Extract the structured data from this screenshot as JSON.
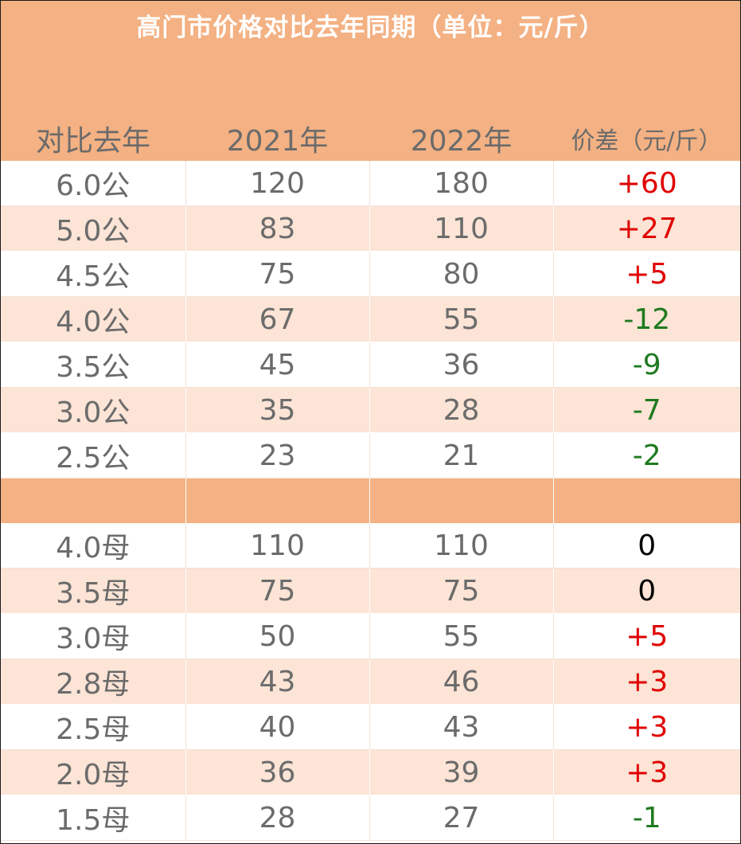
{
  "title": "高门市价格对比去年同期（单位：元/斤）",
  "header": {
    "col1": "对比去年",
    "col2": "2021年",
    "col3": "2022年",
    "col4": "价差（元/斤）"
  },
  "male_rows": [
    {
      "spec": "6.0公",
      "y2021": "120",
      "y2022": "180",
      "diff": "+60",
      "sign": "pos"
    },
    {
      "spec": "5.0公",
      "y2021": "83",
      "y2022": "110",
      "diff": "+27",
      "sign": "pos"
    },
    {
      "spec": "4.5公",
      "y2021": "75",
      "y2022": "80",
      "diff": "+5",
      "sign": "pos"
    },
    {
      "spec": "4.0公",
      "y2021": "67",
      "y2022": "55",
      "diff": "-12",
      "sign": "neg"
    },
    {
      "spec": "3.5公",
      "y2021": "45",
      "y2022": "36",
      "diff": "-9",
      "sign": "neg"
    },
    {
      "spec": "3.0公",
      "y2021": "35",
      "y2022": "28",
      "diff": "-7",
      "sign": "neg"
    },
    {
      "spec": "2.5公",
      "y2021": "23",
      "y2022": "21",
      "diff": "-2",
      "sign": "neg"
    }
  ],
  "female_rows": [
    {
      "spec": "4.0母",
      "y2021": "110",
      "y2022": "110",
      "diff": "0",
      "sign": "zero"
    },
    {
      "spec": "3.5母",
      "y2021": "75",
      "y2022": "75",
      "diff": "0",
      "sign": "zero"
    },
    {
      "spec": "3.0母",
      "y2021": "50",
      "y2022": "55",
      "diff": "+5",
      "sign": "pos"
    },
    {
      "spec": "2.8母",
      "y2021": "43",
      "y2022": "46",
      "diff": "+3",
      "sign": "pos"
    },
    {
      "spec": "2.5母",
      "y2021": "40",
      "y2022": "43",
      "diff": "+3",
      "sign": "pos"
    },
    {
      "spec": "2.0母",
      "y2021": "36",
      "y2022": "39",
      "diff": "+3",
      "sign": "pos"
    },
    {
      "spec": "1.5母",
      "y2021": "28",
      "y2022": "27",
      "diff": "-1",
      "sign": "neg"
    }
  ],
  "colors": {
    "header_band": "#F4B183",
    "stripe": "#FCE4D6",
    "positive": "#e00000",
    "negative": "#1f7a1f",
    "zero": "#000000"
  }
}
